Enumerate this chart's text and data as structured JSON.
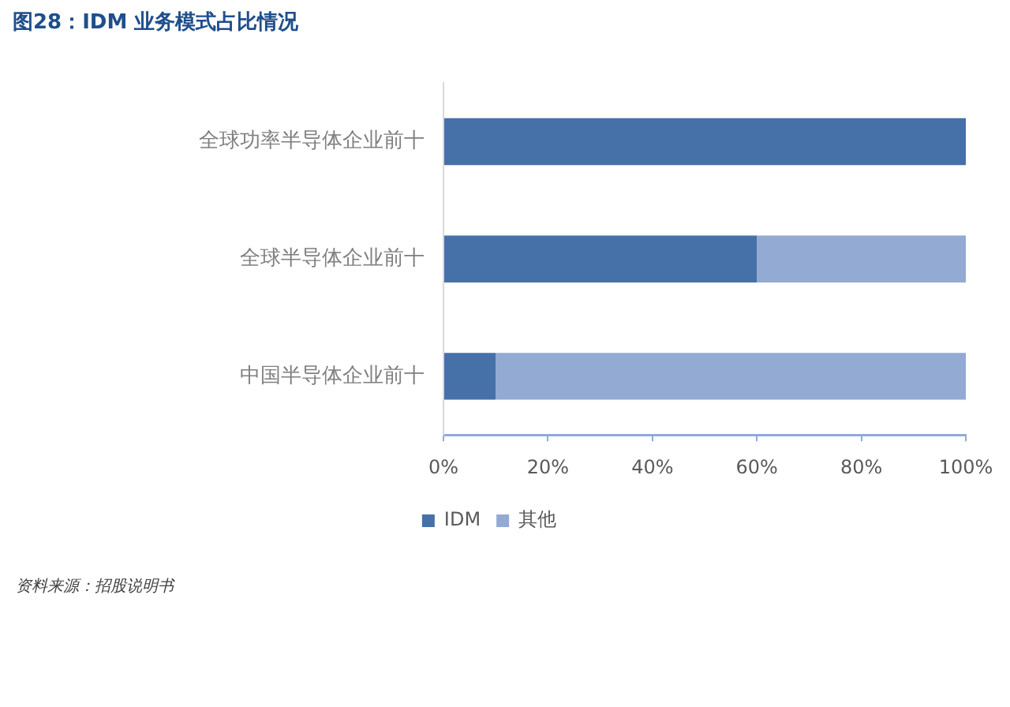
{
  "chart_data": {
    "type": "bar",
    "title": "图28：IDM 业务模式占比情况",
    "orientation": "horizontal",
    "stacked": true,
    "categories": [
      "全球功率半导体企业前十",
      "全球半导体企业前十",
      "中国半导体企业前十"
    ],
    "series": [
      {
        "name": "IDM",
        "color": "#4571a8",
        "values": [
          100,
          60,
          10
        ]
      },
      {
        "name": "其他",
        "color": "#93aad2",
        "values": [
          0,
          40,
          90
        ]
      }
    ],
    "xlim": [
      0,
      100
    ],
    "xticks": [
      {
        "value": 0,
        "label": "0%"
      },
      {
        "value": 20,
        "label": "20%"
      },
      {
        "value": 40,
        "label": "40%"
      },
      {
        "value": 60,
        "label": "60%"
      },
      {
        "value": 80,
        "label": "80%"
      },
      {
        "value": 100,
        "label": "100%"
      }
    ],
    "grid": false,
    "legend": "bottom",
    "annotations": [
      "资料来源：招股说明书"
    ]
  }
}
